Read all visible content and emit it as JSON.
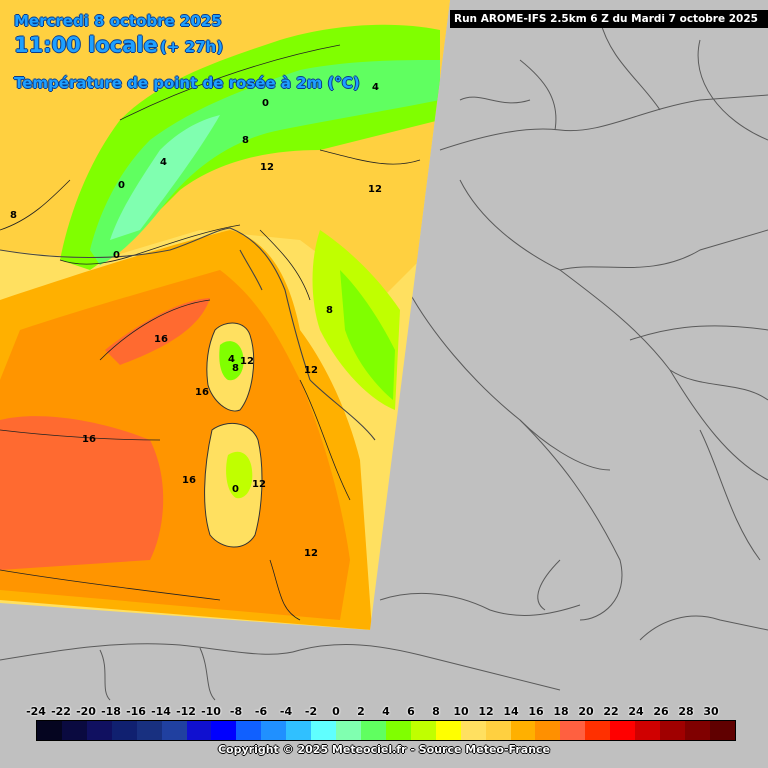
{
  "header": {
    "date": "Mercredi 8 octobre 2025",
    "local_time": "11:00 locale",
    "lead_time": "(+ 27h)",
    "variable": "Température de point de rosée à 2m (°C)"
  },
  "run_info": "Run AROME-IFS 2.5km 6 Z du Mardi 7 octobre 2025",
  "copyright": "Copyright © 2025 Meteociel.fr - Source Meteo-France",
  "legend": {
    "ticks": [
      "-24",
      "-22",
      "-20",
      "-18",
      "-16",
      "-14",
      "-12",
      "-10",
      "-8",
      "-6",
      "-4",
      "-2",
      "0",
      "2",
      "4",
      "6",
      "8",
      "10",
      "12",
      "14",
      "16",
      "18",
      "20",
      "22",
      "24",
      "26",
      "28",
      "30"
    ],
    "colors": [
      "#050520",
      "#0a0a40",
      "#101060",
      "#102070",
      "#183080",
      "#2040a0",
      "#1010d0",
      "#0000ff",
      "#1060ff",
      "#2090ff",
      "#30c0ff",
      "#60ffff",
      "#80ffb0",
      "#60ff60",
      "#80ff00",
      "#c0ff00",
      "#ffff00",
      "#ffe060",
      "#ffd040",
      "#ffb000",
      "#ff9000",
      "#ff6040",
      "#ff3000",
      "#ff0000",
      "#d00000",
      "#a00000",
      "#800000",
      "#600000"
    ]
  },
  "contour_labels": [
    "16",
    "16",
    "16",
    "16",
    "12",
    "12",
    "12",
    "12",
    "12",
    "12",
    "8",
    "8",
    "8",
    "8",
    "4",
    "4",
    "4",
    "0",
    "0",
    "0",
    "0"
  ],
  "colors": {
    "background": "#c0c0c0",
    "land_borders": "#606060",
    "title": "#1ea0ff"
  }
}
